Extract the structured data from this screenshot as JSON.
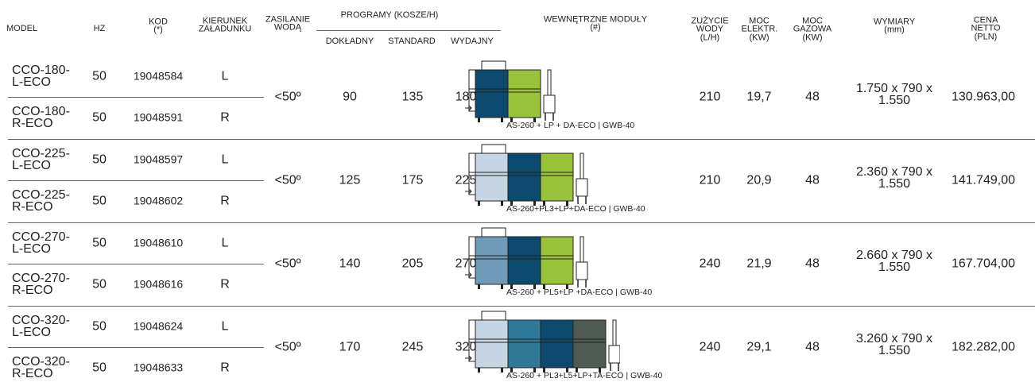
{
  "header": {
    "model": "MODEL",
    "hz": "HZ",
    "kod": "KOD (*)",
    "kierunek": "KIERUNEK ZAŁADUNKU",
    "zasilanie": "ZASILANIE WODĄ",
    "programy": "PROGRAMY (KOSZE/H)",
    "dokladny": "DOKŁADNY",
    "standard": "STANDARD",
    "wydajny": "WYDAJNY",
    "moduly": "WEWNĘTRZNE MODUŁY (#)",
    "zuzycie": "ZUŻYCIE WODY (L/H)",
    "moc_elektr": "MOC ELEKTR. (KW)",
    "moc_gazowa": "MOC GAZOWA (KW)",
    "wymiary": "WYMIARY (mm)",
    "cena": "CENA NETTO (PLN)"
  },
  "groups": [
    {
      "rows": [
        {
          "model": "CCO-180-L-ECO",
          "hz": 50,
          "kod": "19048584",
          "kierunek": "L"
        },
        {
          "model": "CCO-180-R-ECO",
          "hz": 50,
          "kod": "19048591",
          "kierunek": "R"
        }
      ],
      "zasilanie": "<50º",
      "dokladny": 90,
      "standard": 135,
      "wydajny": 180,
      "moduly": "AS-260 + LP + DA-ECO | GWB-40",
      "zuzycie": 210,
      "moc_elektr": "19,7",
      "moc_gazowa": 48,
      "wymiary": "1.750 x 790 x 1.550",
      "cena": "130.963,00"
    },
    {
      "rows": [
        {
          "model": "CCO-225-L-ECO",
          "hz": 50,
          "kod": "19048597",
          "kierunek": "L"
        },
        {
          "model": "CCO-225-R-ECO",
          "hz": 50,
          "kod": "19048602",
          "kierunek": "R"
        }
      ],
      "zasilanie": "<50º",
      "dokladny": 125,
      "standard": 175,
      "wydajny": 225,
      "moduly": "AS-260+PL3+LP+DA-ECO | GWB-40",
      "zuzycie": 210,
      "moc_elektr": "20,9",
      "moc_gazowa": 48,
      "wymiary": "2.360 x 790 x 1.550",
      "cena": "141.749,00"
    },
    {
      "rows": [
        {
          "model": "CCO-270-L-ECO",
          "hz": 50,
          "kod": "19048610",
          "kierunek": "L"
        },
        {
          "model": "CCO-270-R-ECO",
          "hz": 50,
          "kod": "19048616",
          "kierunek": "R"
        }
      ],
      "zasilanie": "<50º",
      "dokladny": 140,
      "standard": 205,
      "wydajny": 270,
      "moduly": "AS-260 + PL5+LP +DA-ECO | GWB-40",
      "zuzycie": 240,
      "moc_elektr": "21,9",
      "moc_gazowa": 48,
      "wymiary": "2.660 x 790 x 1.550",
      "cena": "167.704,00"
    },
    {
      "rows": [
        {
          "model": "CCO-320-L-ECO",
          "hz": 50,
          "kod": "19048624",
          "kierunek": "L"
        },
        {
          "model": "CCO-320-R-ECO",
          "hz": 50,
          "kod": "19048633",
          "kierunek": "R"
        }
      ],
      "zasilanie": "<50º",
      "dokladny": 170,
      "standard": 245,
      "wydajny": 320,
      "moduly": "AS-260 + PL3+L5+LP+TA-ECO | GWB-40",
      "zuzycie": 240,
      "moc_elektr": "29,1",
      "moc_gazowa": 48,
      "wymiary": "3.260 x 790 x 1.550",
      "cena": "182.282,00"
    }
  ]
}
